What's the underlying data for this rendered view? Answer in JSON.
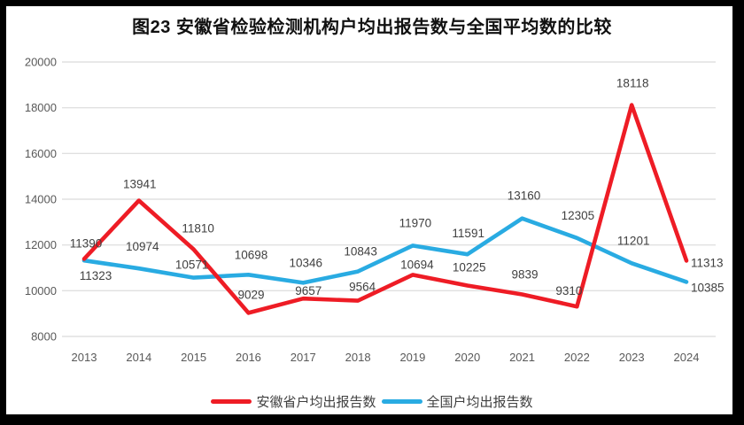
{
  "title": "图23 安徽省检验检测机构户均出报告数与全国平均数的比较",
  "chart_data": {
    "type": "line",
    "x": [
      "2013",
      "2014",
      "2015",
      "2016",
      "2017",
      "2018",
      "2019",
      "2020",
      "2021",
      "2022",
      "2023",
      "2024"
    ],
    "series": [
      {
        "name": "安徽省户均出报告数",
        "color": "#ee1c25",
        "values": [
          11390,
          13941,
          11810,
          9029,
          9657,
          9564,
          10694,
          10225,
          9839,
          9310,
          18118,
          11313
        ]
      },
      {
        "name": "全国户均出报告数",
        "color": "#29abe2",
        "values": [
          11323,
          10974,
          10571,
          10698,
          10346,
          10843,
          11970,
          11591,
          13160,
          12305,
          11201,
          10385
        ]
      }
    ],
    "ylim": [
      8000,
      20000
    ],
    "yticks": [
      20000,
      18000,
      16000,
      14000,
      12000,
      10000,
      8000
    ],
    "grid": "horizontal",
    "grid_color": "#e0e0e0",
    "data_labels": true,
    "legend_position": "bottom",
    "xlabel": "",
    "ylabel": ""
  }
}
